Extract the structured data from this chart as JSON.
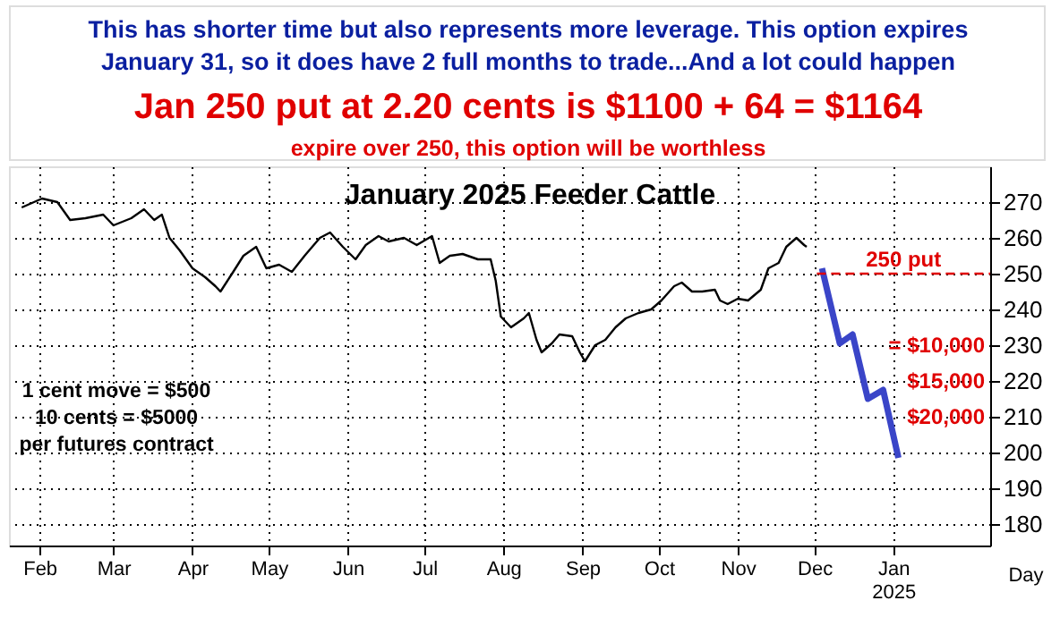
{
  "chart_data": {
    "type": "line",
    "title": "January 2025 Feeder Cattle",
    "x": [
      "2024-01-25",
      "2024-02-02",
      "2024-02-08",
      "2024-02-13",
      "2024-02-19",
      "2024-02-26",
      "2024-03-01",
      "2024-03-08",
      "2024-03-13",
      "2024-03-17",
      "2024-03-20",
      "2024-03-23",
      "2024-03-27",
      "2024-04-01",
      "2024-04-06",
      "2024-04-10",
      "2024-04-12",
      "2024-04-17",
      "2024-04-21",
      "2024-04-26",
      "2024-04-30",
      "2024-05-05",
      "2024-05-10",
      "2024-05-15",
      "2024-05-21",
      "2024-05-25",
      "2024-05-30",
      "2024-06-04",
      "2024-06-08",
      "2024-06-13",
      "2024-06-17",
      "2024-06-23",
      "2024-06-28",
      "2024-07-04",
      "2024-07-07",
      "2024-07-11",
      "2024-07-16",
      "2024-07-22",
      "2024-07-27",
      "2024-07-29",
      "2024-07-31",
      "2024-08-04",
      "2024-08-09",
      "2024-08-11",
      "2024-08-14",
      "2024-08-16",
      "2024-08-20",
      "2024-08-23",
      "2024-08-28",
      "2024-08-31",
      "2024-09-02",
      "2024-09-06",
      "2024-09-10",
      "2024-09-14",
      "2024-09-18",
      "2024-09-23",
      "2024-09-28",
      "2024-10-02",
      "2024-10-07",
      "2024-10-10",
      "2024-10-14",
      "2024-10-18",
      "2024-10-23",
      "2024-10-25",
      "2024-10-28",
      "2024-11-01",
      "2024-11-05",
      "2024-11-10",
      "2024-11-13",
      "2024-11-17",
      "2024-11-20",
      "2024-11-24",
      "2024-11-27",
      "2024-11-28"
    ],
    "series": [
      {
        "color": "#3a45c8",
        "x": [
          "2024-12-04",
          "2024-12-11",
          "2024-12-16",
          "2024-12-22",
          "2024-12-28",
          "2025-01-03"
        ],
        "values": [
          251.5,
          230.5,
          233,
          215,
          217.5,
          198.5
        ]
      },
      {
        "color": "#000000",
        "values": [
          268.5,
          271,
          270,
          265,
          265.5,
          266.5,
          263.5,
          265.5,
          268,
          265,
          266.5,
          260,
          256.5,
          251.5,
          249,
          246.5,
          245,
          250.5,
          255,
          257.5,
          251.5,
          252.5,
          250.5,
          255,
          260,
          261.5,
          257.5,
          254,
          258,
          260.5,
          259,
          260,
          258,
          260.5,
          253,
          255,
          255.5,
          254,
          254,
          248,
          238,
          235,
          237.5,
          239,
          231.5,
          228,
          230.5,
          233,
          232.5,
          228,
          225.5,
          230,
          231.5,
          235,
          237.5,
          239,
          240,
          242.5,
          246.5,
          247.5,
          245,
          245,
          245.5,
          242.5,
          241.5,
          243,
          242.5,
          245.5,
          251.5,
          253,
          257.5,
          260,
          258,
          257.5
        ]
      }
    ],
    "xlim": [
      "2024-01-20",
      "2025-02-08"
    ],
    "xticks": [
      {
        "value": "2024-02-01",
        "label": "Feb"
      },
      {
        "value": "2024-03-01",
        "label": "Mar"
      },
      {
        "value": "2024-04-01",
        "label": "Apr"
      },
      {
        "value": "2024-05-01",
        "label": "May"
      },
      {
        "value": "2024-06-01",
        "label": "Jun"
      },
      {
        "value": "2024-07-01",
        "label": "Jul"
      },
      {
        "value": "2024-08-01",
        "label": "Aug"
      },
      {
        "value": "2024-09-01",
        "label": "Sep"
      },
      {
        "value": "2024-10-01",
        "label": "Oct"
      },
      {
        "value": "2024-11-01",
        "label": "Nov"
      },
      {
        "value": "2024-12-01",
        "label": "Dec"
      },
      {
        "value": "2025-01-01",
        "label": "Jan\n2025"
      }
    ],
    "ylim": [
      174,
      280
    ],
    "yticks": [
      180,
      190,
      200,
      210,
      220,
      230,
      240,
      250,
      260,
      270
    ],
    "grid": true,
    "marker": "none",
    "line_style": "solid",
    "ref_lines": [
      {
        "axis": "y",
        "value": 250,
        "label": "250 put",
        "color": "#e00000",
        "line_style": "dashed"
      }
    ],
    "annotations": [
      "This has shorter time but also represents more leverage. This option expires",
      "January 31, so it does have 2 full months to trade...And a lot could happen",
      "Jan 250 put at 2.20 cents is $1100 + 64 = $1164",
      "expire over 250, this option will be worthless",
      "1 cent move = $500",
      "10 cents = $5000",
      "per futures contract",
      "Day",
      "= $10,000",
      "$15,000",
      "$20,000"
    ]
  }
}
